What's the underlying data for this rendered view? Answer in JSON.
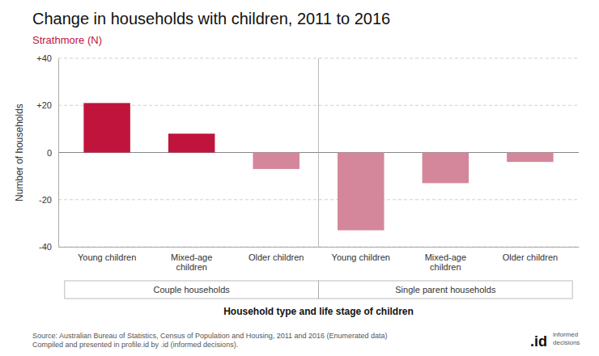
{
  "chart_data": {
    "type": "bar",
    "title": "Change in households with children, 2011 to 2016",
    "subtitle": "Strathmore (N)",
    "categories": [
      "Young children",
      "Mixed-age\nchildren",
      "Older children",
      "Young children",
      "Mixed-age\nchildren",
      "Older children"
    ],
    "values": [
      21,
      8,
      -7,
      -33,
      -13,
      -4
    ],
    "colors": [
      "#c0143c",
      "#c0143c",
      "#d4879a",
      "#d4879a",
      "#d4879a",
      "#d4879a"
    ],
    "group_labels": [
      "Couple households",
      "Single parent households"
    ],
    "xlabel": "Household type and life stage of children",
    "ylabel": "Number of households",
    "ylim": [
      -40,
      40
    ],
    "yticks": [
      -40,
      -20,
      0,
      {
        "value": 20,
        "label": "+20"
      },
      {
        "value": 40,
        "label": "+40"
      }
    ],
    "grid": true,
    "source": "Source: Australian Bureau of Statistics, Census of Population and Housing, 2011 and 2016 (Enumerated data)\nCompiled and presented in profile.id by .id (informed decisions).",
    "logo": ".id",
    "logo_subtext": "informed\ndecisions"
  }
}
